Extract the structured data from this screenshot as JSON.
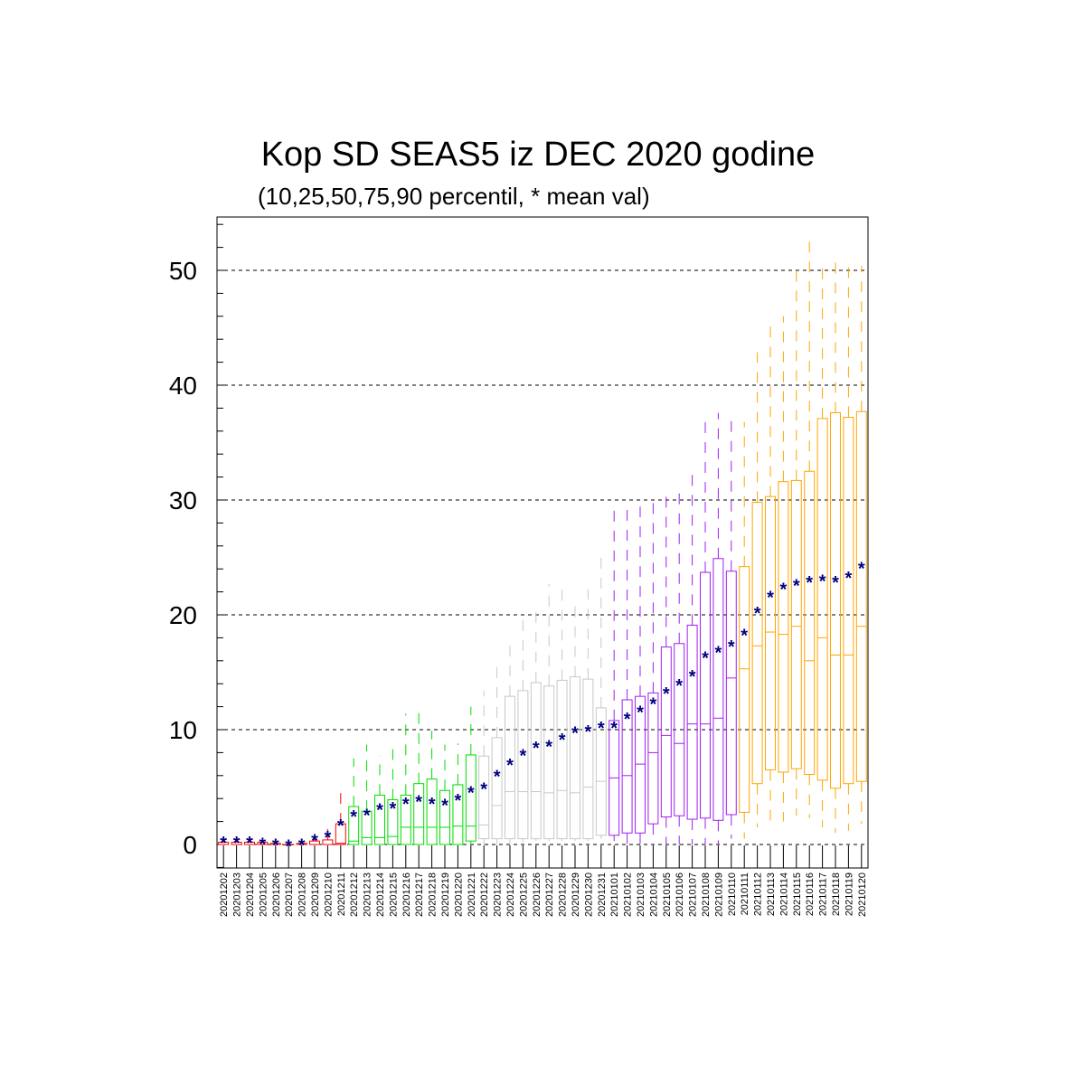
{
  "chart_data": {
    "type": "box",
    "title": "Kop SD SEAS5 iz DEC 2020 godine",
    "subtitle": "(10,25,50,75,90 percentil, * mean val)",
    "xlabel": "",
    "ylabel": "",
    "ylim": [
      -2,
      55
    ],
    "yticks": [
      0,
      10,
      20,
      30,
      40,
      50
    ],
    "grid": "dashed horizontal at major ticks",
    "mean_marker": "*",
    "mean_color": "#000080",
    "categories": [
      "20201202",
      "20201203",
      "20201204",
      "20201205",
      "20201206",
      "20201207",
      "20201208",
      "20201209",
      "20201210",
      "20201211",
      "20201212",
      "20201213",
      "20201214",
      "20201215",
      "20201216",
      "20201217",
      "20201218",
      "20201219",
      "20201220",
      "20201221",
      "20201222",
      "20201223",
      "20201224",
      "20201225",
      "20201226",
      "20201227",
      "20201228",
      "20201229",
      "20201230",
      "20201231",
      "20210101",
      "20210102",
      "20210103",
      "20210104",
      "20210105",
      "20210106",
      "20210107",
      "20210108",
      "20210109",
      "20210110",
      "20210111",
      "20210112",
      "20210113",
      "20210114",
      "20210115",
      "20210116",
      "20210117",
      "20210118",
      "20210119",
      "20210120"
    ],
    "colors": {
      "Dec-early": "#ff0000",
      "Dec-mid": "#00dd00",
      "Dec-late": "#c8c8c8",
      "Jan-early": "#a020f0",
      "Jan-mid": "#ffa500"
    },
    "color_groups": [
      "Dec-early",
      "Dec-early",
      "Dec-early",
      "Dec-early",
      "Dec-early",
      "Dec-early",
      "Dec-early",
      "Dec-early",
      "Dec-early",
      "Dec-early",
      "Dec-mid",
      "Dec-mid",
      "Dec-mid",
      "Dec-mid",
      "Dec-mid",
      "Dec-mid",
      "Dec-mid",
      "Dec-mid",
      "Dec-mid",
      "Dec-mid",
      "Dec-late",
      "Dec-late",
      "Dec-late",
      "Dec-late",
      "Dec-late",
      "Dec-late",
      "Dec-late",
      "Dec-late",
      "Dec-late",
      "Dec-late",
      "Jan-early",
      "Jan-early",
      "Jan-early",
      "Jan-early",
      "Jan-early",
      "Jan-early",
      "Jan-early",
      "Jan-early",
      "Jan-early",
      "Jan-early",
      "Jan-mid",
      "Jan-mid",
      "Jan-mid",
      "Jan-mid",
      "Jan-mid",
      "Jan-mid",
      "Jan-mid",
      "Jan-mid",
      "Jan-mid",
      "Jan-mid"
    ],
    "p10": [
      0,
      0,
      0,
      0,
      0,
      0,
      0,
      0,
      0,
      0,
      0,
      0,
      0,
      0,
      0,
      0,
      0,
      0,
      0,
      0,
      0,
      0,
      0,
      0.2,
      0.3,
      0.3,
      0.3,
      0.3,
      0.3,
      0.5,
      0.3,
      0,
      0,
      0,
      0,
      0,
      0,
      0,
      0,
      0.5,
      0.5,
      1.5,
      2,
      2,
      2.5,
      2.3,
      1.5,
      1,
      1.2,
      1.8
    ],
    "p25": [
      0,
      0,
      0,
      0,
      0,
      0,
      0,
      0,
      0,
      0,
      0,
      0,
      0,
      0,
      0,
      0,
      0,
      0,
      0,
      0.3,
      0.5,
      0.5,
      0.5,
      0.5,
      0.5,
      0.5,
      0.5,
      0.5,
      0.5,
      0.8,
      0.8,
      1,
      1,
      1.8,
      2.4,
      2.5,
      2.2,
      2.3,
      2.1,
      2.6,
      2.8,
      5.3,
      6.5,
      6.3,
      6.6,
      6.1,
      5.6,
      4.9,
      5.3,
      5.5
    ],
    "p50": [
      0,
      0,
      0,
      0,
      0,
      0,
      0,
      0,
      0,
      0.1,
      0.3,
      0.6,
      0.6,
      0.7,
      1.5,
      1.5,
      1.5,
      1.5,
      1.6,
      1.6,
      1.7,
      3.4,
      4.6,
      4.6,
      4.6,
      4.5,
      4.7,
      4.5,
      5,
      5.5,
      5.8,
      6,
      7,
      8,
      9.5,
      8.8,
      10.5,
      10.5,
      11,
      14.5,
      15.3,
      17.3,
      18.5,
      18.3,
      19,
      16,
      18,
      16.5,
      16.5,
      19
    ],
    "p75": [
      0.2,
      0.2,
      0.2,
      0.2,
      0.1,
      0,
      0.1,
      0.3,
      0.4,
      1.8,
      3.3,
      2.9,
      4.3,
      3.9,
      4.3,
      5.3,
      5.7,
      4.7,
      5.2,
      7.8,
      7.7,
      9.3,
      12.9,
      13.4,
      14.1,
      13.8,
      14.3,
      14.6,
      14.4,
      11.9,
      10.8,
      12.6,
      12.9,
      13.2,
      17.2,
      17.5,
      19.1,
      23.7,
      24.9,
      23.8,
      24.2,
      29.8,
      30.3,
      31.6,
      31.7,
      32.5,
      37.1,
      37.6,
      37.2,
      37.7
    ],
    "p90": [
      0.6,
      0.5,
      0.5,
      0.4,
      0.2,
      0.1,
      0.3,
      0.7,
      1.5,
      4.9,
      7.5,
      8.7,
      7.8,
      8.3,
      11.4,
      11.5,
      9.9,
      8.7,
      8.8,
      12.0,
      13.4,
      15.8,
      17.5,
      19.7,
      20.8,
      22.7,
      22.7,
      21.2,
      22.2,
      25.2,
      29.7,
      29.9,
      30.2,
      30.3,
      30.6,
      30.6,
      32.9,
      37.0,
      37.6,
      37.5,
      36.8,
      43.6,
      45.9,
      46.0,
      50.1,
      52.7,
      50.7,
      50.7,
      50.6,
      50.4
    ],
    "mean": [
      0.3,
      0.3,
      0.3,
      0.2,
      0.1,
      0.05,
      0.1,
      0.5,
      0.8,
      1.8,
      2.6,
      2.7,
      3.2,
      3.3,
      3.7,
      3.9,
      3.7,
      3.6,
      4.0,
      4.7,
      5.0,
      6.1,
      7.1,
      7.9,
      8.6,
      8.7,
      9.3,
      9.9,
      10.0,
      10.3,
      10.3,
      11.1,
      11.7,
      12.4,
      13.3,
      14.0,
      14.8,
      16.4,
      16.9,
      17.4,
      18.4,
      20.3,
      21.7,
      22.4,
      22.7,
      23.0,
      23.1,
      23.0,
      23.4,
      24.2
    ]
  }
}
